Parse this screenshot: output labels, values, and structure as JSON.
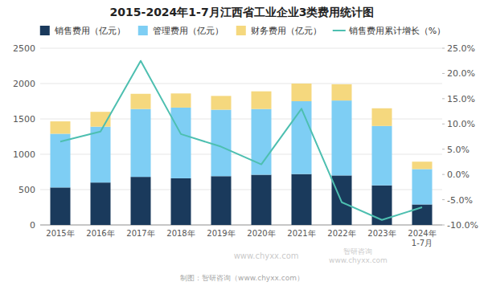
{
  "chart_data": {
    "type": "bar",
    "title": "2015-2024年1-7月江西省工业企业3类费用统计图",
    "categories": [
      "2015年",
      "2016年",
      "2017年",
      "2018年",
      "2019年",
      "2020年",
      "2021年",
      "2022年",
      "2023年",
      "2024年\n1-7月"
    ],
    "stacked": true,
    "grid": true,
    "legend": "top",
    "series": [
      {
        "name": "销售费用（亿元）",
        "color": "#1a3a5c",
        "values": [
          530,
          600,
          680,
          660,
          690,
          710,
          720,
          700,
          560,
          290
        ]
      },
      {
        "name": "管理费用（亿元）",
        "color": "#7ecef4",
        "values": [
          760,
          790,
          960,
          1000,
          940,
          930,
          1030,
          1060,
          840,
          500
        ]
      },
      {
        "name": "财务费用（亿元）",
        "color": "#f5d87e",
        "values": [
          175,
          210,
          215,
          200,
          195,
          250,
          250,
          230,
          250,
          105
        ]
      },
      {
        "name": "销售费用累计增长（%）",
        "type": "line",
        "axis": "y2",
        "color": "#4dbfb0",
        "values": [
          6.5,
          8.5,
          22.5,
          8.0,
          5.5,
          2.0,
          13.0,
          -5.5,
          -9.0,
          -6.5
        ]
      }
    ],
    "ylim": [
      0,
      2500
    ],
    "yticks": [
      0,
      500,
      1000,
      1500,
      2000,
      2500
    ],
    "y2lim": [
      -10.0,
      25.0
    ],
    "y2ticks": [
      {
        "value": -10.0,
        "label": "-10.0%"
      },
      {
        "value": -5.0,
        "label": "-5.0%"
      },
      {
        "value": 0.0,
        "label": "0.0%"
      },
      {
        "value": 5.0,
        "label": "5.0%"
      },
      {
        "value": 10.0,
        "label": "10.0%"
      },
      {
        "value": 15.0,
        "label": "15.0%"
      },
      {
        "value": 20.0,
        "label": "20.0%"
      },
      {
        "value": 25.0,
        "label": "25.0%"
      }
    ],
    "annotations": [
      "www.chyxx.com",
      "智研咨询\nwww.chyxx.com",
      "制图：智研咨询（www.chyxx.com）"
    ]
  }
}
